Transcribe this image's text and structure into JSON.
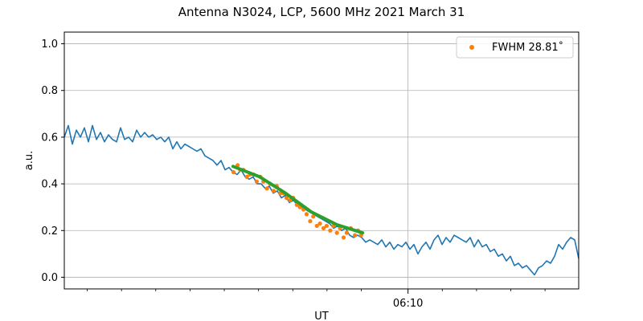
{
  "chart_data": {
    "type": "line",
    "title": "Antenna N3024, LCP, 5600 MHz 2021 March 31",
    "xlabel": "UT",
    "ylabel": "a.u.",
    "xlim": [
      0,
      1
    ],
    "ylim": [
      -0.05,
      1.05
    ],
    "x_major_tick": {
      "label": "06:10",
      "x": 0.6682
    },
    "x_minor_ticks": [
      0.0446,
      0.1112,
      0.1778,
      0.2444,
      0.311,
      0.3776,
      0.4442,
      0.5107,
      0.5773,
      0.7348,
      0.8014,
      0.868,
      0.9346
    ],
    "yticks": [
      0.0,
      0.2,
      0.4,
      0.6,
      0.8,
      1.0
    ],
    "ytick_labels": [
      "0.0",
      "0.2",
      "0.4",
      "0.6",
      "0.8",
      "1.0"
    ],
    "grid": true,
    "legend": {
      "position": "top-right",
      "entries": [
        "FWHM 28.81˚"
      ]
    },
    "series": [
      {
        "style": "line",
        "color": "#1f77b4",
        "points": [
          [
            0.0,
            0.6
          ],
          [
            0.0078,
            0.65
          ],
          [
            0.0156,
            0.57
          ],
          [
            0.0234,
            0.63
          ],
          [
            0.0313,
            0.6
          ],
          [
            0.0391,
            0.64
          ],
          [
            0.0469,
            0.58
          ],
          [
            0.0547,
            0.65
          ],
          [
            0.0625,
            0.59
          ],
          [
            0.0703,
            0.62
          ],
          [
            0.0781,
            0.58
          ],
          [
            0.0859,
            0.61
          ],
          [
            0.0938,
            0.59
          ],
          [
            0.1016,
            0.58
          ],
          [
            0.1094,
            0.64
          ],
          [
            0.1172,
            0.59
          ],
          [
            0.125,
            0.6
          ],
          [
            0.1328,
            0.58
          ],
          [
            0.1406,
            0.63
          ],
          [
            0.1484,
            0.6
          ],
          [
            0.1563,
            0.62
          ],
          [
            0.1641,
            0.6
          ],
          [
            0.1719,
            0.61
          ],
          [
            0.1797,
            0.59
          ],
          [
            0.1875,
            0.6
          ],
          [
            0.1953,
            0.58
          ],
          [
            0.2031,
            0.6
          ],
          [
            0.2109,
            0.55
          ],
          [
            0.2188,
            0.58
          ],
          [
            0.2266,
            0.55
          ],
          [
            0.2344,
            0.57
          ],
          [
            0.2422,
            0.56
          ],
          [
            0.25,
            0.55
          ],
          [
            0.2578,
            0.54
          ],
          [
            0.2656,
            0.55
          ],
          [
            0.2734,
            0.52
          ],
          [
            0.2813,
            0.51
          ],
          [
            0.2891,
            0.5
          ],
          [
            0.2969,
            0.48
          ],
          [
            0.3047,
            0.5
          ],
          [
            0.3125,
            0.46
          ],
          [
            0.3203,
            0.47
          ],
          [
            0.3281,
            0.45
          ],
          [
            0.3359,
            0.44
          ],
          [
            0.3438,
            0.46
          ],
          [
            0.3516,
            0.43
          ],
          [
            0.3594,
            0.42
          ],
          [
            0.3672,
            0.43
          ],
          [
            0.375,
            0.4
          ],
          [
            0.3828,
            0.4
          ],
          [
            0.3906,
            0.38
          ],
          [
            0.3984,
            0.39
          ],
          [
            0.4063,
            0.36
          ],
          [
            0.4141,
            0.37
          ],
          [
            0.4219,
            0.34
          ],
          [
            0.4297,
            0.35
          ],
          [
            0.4375,
            0.32
          ],
          [
            0.4453,
            0.33
          ],
          [
            0.4531,
            0.31
          ],
          [
            0.4609,
            0.3
          ],
          [
            0.4688,
            0.29
          ],
          [
            0.4766,
            0.28
          ],
          [
            0.4844,
            0.27
          ],
          [
            0.4922,
            0.26
          ],
          [
            0.5,
            0.25
          ],
          [
            0.5078,
            0.24
          ],
          [
            0.5156,
            0.23
          ],
          [
            0.5234,
            0.21
          ],
          [
            0.5313,
            0.22
          ],
          [
            0.5391,
            0.2
          ],
          [
            0.5469,
            0.21
          ],
          [
            0.5547,
            0.18
          ],
          [
            0.5625,
            0.17
          ],
          [
            0.5703,
            0.18
          ],
          [
            0.5781,
            0.17
          ],
          [
            0.5859,
            0.15
          ],
          [
            0.5938,
            0.16
          ],
          [
            0.6016,
            0.15
          ],
          [
            0.6094,
            0.14
          ],
          [
            0.6172,
            0.16
          ],
          [
            0.625,
            0.13
          ],
          [
            0.6328,
            0.15
          ],
          [
            0.6406,
            0.12
          ],
          [
            0.6484,
            0.14
          ],
          [
            0.6563,
            0.13
          ],
          [
            0.6641,
            0.15
          ],
          [
            0.6719,
            0.12
          ],
          [
            0.6797,
            0.14
          ],
          [
            0.6875,
            0.1
          ],
          [
            0.6953,
            0.13
          ],
          [
            0.7031,
            0.15
          ],
          [
            0.7109,
            0.12
          ],
          [
            0.7188,
            0.16
          ],
          [
            0.7266,
            0.18
          ],
          [
            0.7344,
            0.14
          ],
          [
            0.7422,
            0.17
          ],
          [
            0.75,
            0.15
          ],
          [
            0.7578,
            0.18
          ],
          [
            0.7656,
            0.17
          ],
          [
            0.7734,
            0.16
          ],
          [
            0.7813,
            0.15
          ],
          [
            0.7891,
            0.17
          ],
          [
            0.7969,
            0.13
          ],
          [
            0.8047,
            0.16
          ],
          [
            0.8125,
            0.13
          ],
          [
            0.8203,
            0.14
          ],
          [
            0.8281,
            0.11
          ],
          [
            0.8359,
            0.12
          ],
          [
            0.8438,
            0.09
          ],
          [
            0.8516,
            0.1
          ],
          [
            0.8594,
            0.07
          ],
          [
            0.8672,
            0.09
          ],
          [
            0.875,
            0.05
          ],
          [
            0.8828,
            0.06
          ],
          [
            0.8906,
            0.04
          ],
          [
            0.8984,
            0.05
          ],
          [
            0.9063,
            0.03
          ],
          [
            0.9141,
            0.01
          ],
          [
            0.9219,
            0.04
          ],
          [
            0.9297,
            0.05
          ],
          [
            0.9375,
            0.07
          ],
          [
            0.9453,
            0.06
          ],
          [
            0.9531,
            0.09
          ],
          [
            0.9609,
            0.14
          ],
          [
            0.9688,
            0.12
          ],
          [
            0.9766,
            0.15
          ],
          [
            0.9844,
            0.17
          ],
          [
            0.9922,
            0.16
          ],
          [
            1.0,
            0.08
          ]
        ]
      },
      {
        "style": "scatter",
        "color": "#ff7f0e",
        "points": [
          [
            0.329,
            0.45
          ],
          [
            0.337,
            0.48
          ],
          [
            0.342,
            0.46
          ],
          [
            0.348,
            0.46
          ],
          [
            0.355,
            0.43
          ],
          [
            0.361,
            0.44
          ],
          [
            0.368,
            0.44
          ],
          [
            0.374,
            0.41
          ],
          [
            0.381,
            0.43
          ],
          [
            0.387,
            0.41
          ],
          [
            0.394,
            0.38
          ],
          [
            0.4,
            0.4
          ],
          [
            0.407,
            0.37
          ],
          [
            0.413,
            0.39
          ],
          [
            0.42,
            0.36
          ],
          [
            0.426,
            0.36
          ],
          [
            0.432,
            0.34
          ],
          [
            0.439,
            0.33
          ],
          [
            0.445,
            0.34
          ],
          [
            0.452,
            0.31
          ],
          [
            0.458,
            0.3
          ],
          [
            0.465,
            0.29
          ],
          [
            0.471,
            0.27
          ],
          [
            0.478,
            0.24
          ],
          [
            0.484,
            0.26
          ],
          [
            0.491,
            0.22
          ],
          [
            0.497,
            0.23
          ],
          [
            0.504,
            0.21
          ],
          [
            0.51,
            0.22
          ],
          [
            0.517,
            0.2
          ],
          [
            0.523,
            0.22
          ],
          [
            0.53,
            0.19
          ],
          [
            0.536,
            0.21
          ],
          [
            0.543,
            0.17
          ],
          [
            0.549,
            0.19
          ],
          [
            0.557,
            0.21
          ],
          [
            0.565,
            0.18
          ],
          [
            0.571,
            0.2
          ],
          [
            0.577,
            0.18
          ]
        ]
      },
      {
        "style": "fit",
        "color": "#2ca02c",
        "points": [
          [
            0.328,
            0.475
          ],
          [
            0.38,
            0.43
          ],
          [
            0.43,
            0.36
          ],
          [
            0.48,
            0.28
          ],
          [
            0.53,
            0.225
          ],
          [
            0.58,
            0.19
          ]
        ]
      }
    ]
  }
}
